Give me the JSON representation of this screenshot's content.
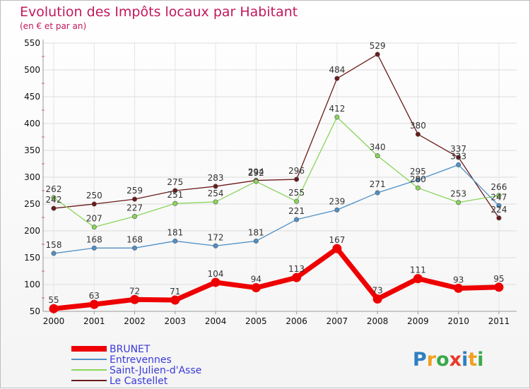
{
  "chart_data": {
    "type": "line",
    "title": "Evolution des Impôts locaux par Habitant",
    "subtitle": "(en € et par an)",
    "xlabel": "",
    "ylabel": "",
    "categories": [
      "2000",
      "2001",
      "2002",
      "2003",
      "2004",
      "2005",
      "2006",
      "2007",
      "2008",
      "2009",
      "2010",
      "2011"
    ],
    "y_ticks": [
      50,
      100,
      150,
      200,
      250,
      300,
      350,
      400,
      450,
      500,
      550
    ],
    "ylim": [
      50,
      550
    ],
    "grid": true,
    "legend_position": "bottom-left",
    "series": [
      {
        "name": "BRUNET",
        "color": "#ee0000",
        "values": [
          55,
          63,
          72,
          71,
          104,
          94,
          113,
          167,
          73,
          111,
          93,
          95
        ]
      },
      {
        "name": "Entrevennes",
        "color": "#4f90c8",
        "values": [
          158,
          168,
          168,
          181,
          172,
          181,
          221,
          239,
          271,
          295,
          323,
          247
        ]
      },
      {
        "name": "Saint-Julien-d'Asse",
        "color": "#88d55a",
        "values": [
          262,
          207,
          227,
          251,
          254,
          292,
          255,
          412,
          340,
          280,
          253,
          266
        ]
      },
      {
        "name": "Le Castellet",
        "color": "#6b1a1a",
        "values": [
          242,
          250,
          259,
          275,
          283,
          294,
          296,
          484,
          529,
          380,
          337,
          224
        ]
      }
    ]
  },
  "branding": {
    "logo_text": "Proxiti",
    "logo_letters": [
      "P",
      "r",
      "o",
      "x",
      "i",
      "t",
      "i"
    ],
    "logo_colors": [
      "#2e7fc2",
      "#f0a020",
      "#3aa84a",
      "#e83a2a",
      "#2e7fc2",
      "#f0a020",
      "#3aa84a"
    ]
  }
}
